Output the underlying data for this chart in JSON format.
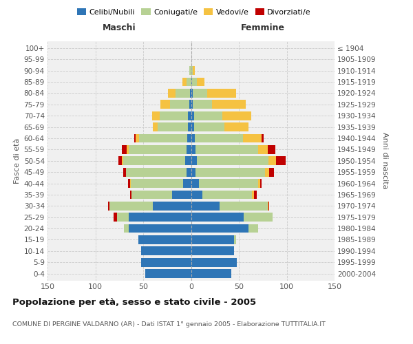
{
  "age_groups": [
    "0-4",
    "5-9",
    "10-14",
    "15-19",
    "20-24",
    "25-29",
    "30-34",
    "35-39",
    "40-44",
    "45-49",
    "50-54",
    "55-59",
    "60-64",
    "65-69",
    "70-74",
    "75-79",
    "80-84",
    "85-89",
    "90-94",
    "95-99",
    "100+"
  ],
  "birth_years": [
    "2000-2004",
    "1995-1999",
    "1990-1994",
    "1985-1989",
    "1980-1984",
    "1975-1979",
    "1970-1974",
    "1965-1969",
    "1960-1964",
    "1955-1959",
    "1950-1954",
    "1945-1949",
    "1940-1944",
    "1935-1939",
    "1930-1934",
    "1925-1929",
    "1920-1924",
    "1915-1919",
    "1910-1914",
    "1905-1909",
    "≤ 1904"
  ],
  "male": {
    "celibi": [
      48,
      52,
      52,
      55,
      65,
      65,
      40,
      20,
      8,
      5,
      6,
      5,
      4,
      3,
      3,
      2,
      1,
      0,
      0,
      0,
      0
    ],
    "coniugati": [
      0,
      0,
      0,
      0,
      5,
      12,
      45,
      42,
      55,
      63,
      65,
      60,
      50,
      32,
      30,
      20,
      15,
      5,
      2,
      0,
      0
    ],
    "vedovi": [
      0,
      0,
      0,
      0,
      0,
      0,
      0,
      0,
      1,
      0,
      1,
      2,
      4,
      5,
      8,
      10,
      8,
      4,
      0,
      0,
      0
    ],
    "divorziati": [
      0,
      0,
      0,
      0,
      0,
      4,
      2,
      2,
      2,
      3,
      4,
      5,
      1,
      0,
      0,
      0,
      0,
      0,
      0,
      0,
      0
    ]
  },
  "female": {
    "nubili": [
      42,
      48,
      45,
      45,
      60,
      55,
      30,
      12,
      8,
      5,
      6,
      5,
      4,
      3,
      3,
      2,
      2,
      1,
      0,
      0,
      0
    ],
    "coniugate": [
      0,
      0,
      0,
      2,
      10,
      30,
      50,
      52,
      62,
      72,
      75,
      65,
      50,
      32,
      30,
      20,
      15,
      5,
      2,
      0,
      0
    ],
    "vedove": [
      0,
      0,
      0,
      0,
      0,
      0,
      1,
      2,
      2,
      5,
      8,
      10,
      20,
      25,
      30,
      35,
      30,
      8,
      2,
      0,
      0
    ],
    "divorziate": [
      0,
      0,
      0,
      0,
      0,
      0,
      1,
      3,
      2,
      5,
      10,
      8,
      2,
      0,
      0,
      0,
      0,
      0,
      0,
      0,
      0
    ]
  },
  "colors": {
    "celibi": "#2e75b6",
    "coniugati": "#b7d194",
    "vedovi": "#f5c242",
    "divorziati": "#c00000"
  },
  "title": "Popolazione per età, sesso e stato civile - 2005",
  "subtitle": "COMUNE DI PERGINE VALDARNO (AR) - Dati ISTAT 1° gennaio 2005 - Elaborazione TUTTITALIA.IT",
  "xlabel_left": "Maschi",
  "xlabel_right": "Femmine",
  "ylabel_left": "Fasce di età",
  "ylabel_right": "Anni di nascita",
  "xlim": 150,
  "bg_color": "#ffffff",
  "plot_bg": "#f0f0f0",
  "grid_color": "#cccccc"
}
